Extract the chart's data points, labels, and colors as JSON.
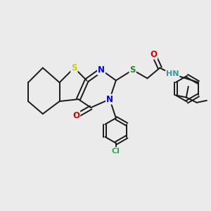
{
  "background_color": "#ebebeb",
  "bond_color": "#1a1a1a",
  "atom_colors": {
    "S_thio": "#cccc00",
    "S_thioether": "#228822",
    "N": "#0000dd",
    "O": "#dd0000",
    "Cl": "#33aa55",
    "HN": "#339999",
    "C": "#1a1a1a"
  },
  "figsize": [
    3.0,
    3.0
  ],
  "dpi": 100
}
